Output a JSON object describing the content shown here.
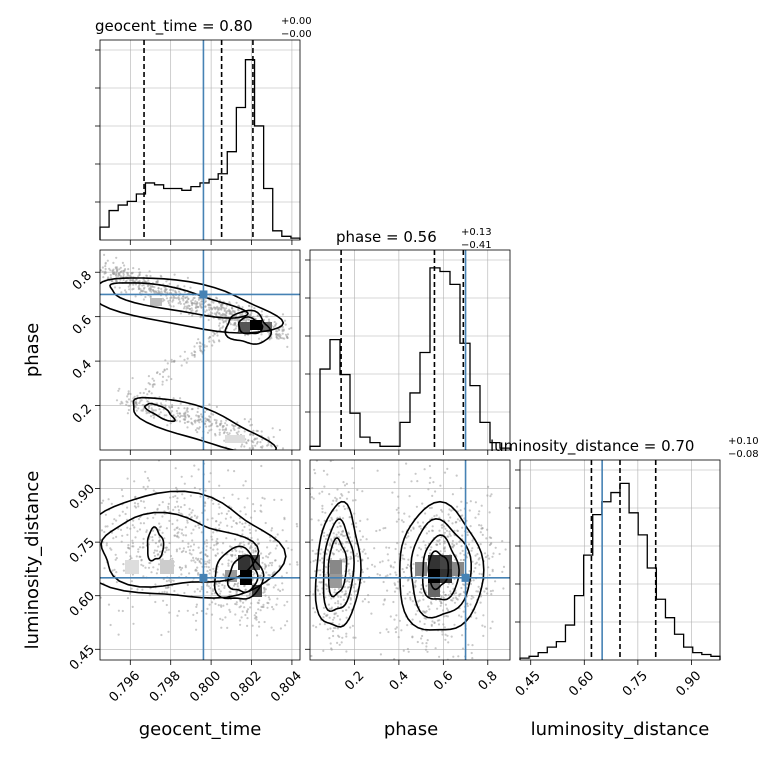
{
  "chart_data": {
    "type": "corner",
    "parameters": [
      {
        "name": "geocent_time",
        "title_value": "0.80",
        "err_plus": "+0.00",
        "err_minus": "−0.00",
        "range": [
          0.7945,
          0.8044
        ],
        "truth": 0.79962,
        "quantiles": [
          0.79668,
          0.80052,
          0.80207
        ],
        "ticks": [
          0.796,
          0.798,
          0.8,
          0.802,
          0.804
        ],
        "tick_labels": [
          "0.796",
          "0.798",
          "0.800",
          "0.802",
          "0.804"
        ],
        "hist": [
          0.07,
          0.16,
          0.19,
          0.21,
          0.25,
          0.31,
          0.3,
          0.28,
          0.28,
          0.27,
          0.29,
          0.31,
          0.33,
          0.36,
          0.48,
          0.72,
          0.98,
          0.62,
          0.28,
          0.05,
          0.02,
          0.01
        ]
      },
      {
        "name": "phase",
        "title_value": "0.56",
        "err_plus": "+0.13",
        "err_minus": "−0.41",
        "range": [
          0.0,
          0.9
        ],
        "truth": 0.7,
        "quantiles": [
          0.14,
          0.56,
          0.69
        ],
        "ticks": [
          0.2,
          0.4,
          0.6,
          0.8
        ],
        "tick_labels": [
          "0.2",
          "0.4",
          "0.6",
          "0.8"
        ],
        "hist": [
          0.02,
          0.44,
          0.6,
          0.41,
          0.2,
          0.07,
          0.04,
          0.02,
          0.02,
          0.15,
          0.31,
          0.53,
          0.99,
          0.97,
          0.9,
          0.58,
          0.35,
          0.15,
          0.04,
          0.01
        ]
      },
      {
        "name": "luminosity_distance",
        "title_value": "0.70",
        "err_plus": "+0.10",
        "err_minus": "−0.08",
        "range": [
          0.42,
          0.98
        ],
        "truth": 0.65,
        "quantiles": [
          0.62,
          0.7,
          0.8
        ],
        "ticks": [
          0.45,
          0.6,
          0.75,
          0.9
        ],
        "tick_labels": [
          "0.45",
          "0.60",
          "0.75",
          "0.90"
        ],
        "hist": [
          0.01,
          0.02,
          0.04,
          0.07,
          0.1,
          0.19,
          0.35,
          0.57,
          0.79,
          0.86,
          0.91,
          0.96,
          0.8,
          0.68,
          0.5,
          0.33,
          0.23,
          0.14,
          0.07,
          0.04,
          0.03,
          0.02
        ]
      }
    ],
    "truth_color": "#4682b4",
    "line_color": "#000000",
    "grid": true
  }
}
